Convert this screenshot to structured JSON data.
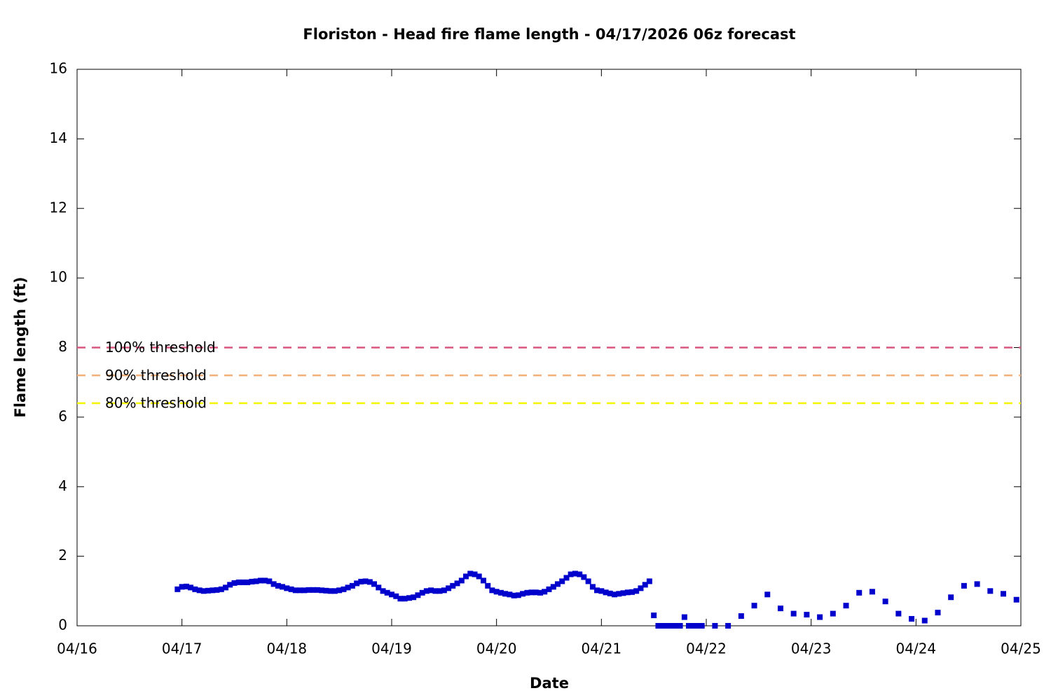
{
  "chart_data": {
    "type": "scatter",
    "title": "Floriston - Head fire flame length - 04/17/2026 06z forecast",
    "x_label": "Date",
    "y_label": "Flame length (ft)",
    "xlim": [
      0,
      9
    ],
    "xticks": [
      {
        "value": 0,
        "label": "04/16"
      },
      {
        "value": 1,
        "label": "04/17"
      },
      {
        "value": 2,
        "label": "04/18"
      },
      {
        "value": 3,
        "label": "04/19"
      },
      {
        "value": 4,
        "label": "04/20"
      },
      {
        "value": 5,
        "label": "04/21"
      },
      {
        "value": 6,
        "label": "04/22"
      },
      {
        "value": 7,
        "label": "04/23"
      },
      {
        "value": 8,
        "label": "04/24"
      },
      {
        "value": 9,
        "label": "04/25"
      }
    ],
    "ylim": [
      0,
      16
    ],
    "yticks": [
      0,
      2,
      4,
      6,
      8,
      10,
      12,
      14,
      16
    ],
    "thresholds": [
      {
        "label": "100% threshold",
        "value": 8,
        "color": "#d9577f"
      },
      {
        "label": "90% threshold",
        "value": 7.2,
        "color": "#f2b07a"
      },
      {
        "label": "80% threshold",
        "value": 6.4,
        "color": "#f5f500"
      }
    ],
    "series": [
      {
        "color": "#0000cc",
        "x": [
          0.958,
          1,
          1.042,
          1.083,
          1.125,
          1.167,
          1.208,
          1.25,
          1.292,
          1.333,
          1.375,
          1.417,
          1.458,
          1.5,
          1.542,
          1.583,
          1.625,
          1.667,
          1.708,
          1.75,
          1.792,
          1.833,
          1.875,
          1.917,
          1.958,
          2,
          2.042,
          2.083,
          2.125,
          2.167,
          2.208,
          2.25,
          2.292,
          2.333,
          2.375,
          2.417,
          2.458,
          2.5,
          2.542,
          2.583,
          2.625,
          2.667,
          2.708,
          2.75,
          2.792,
          2.833,
          2.875,
          2.917,
          2.958,
          3,
          3.042,
          3.083,
          3.125,
          3.167,
          3.208,
          3.25,
          3.292,
          3.333,
          3.375,
          3.417,
          3.458,
          3.5,
          3.542,
          3.583,
          3.625,
          3.667,
          3.708,
          3.75,
          3.792,
          3.833,
          3.875,
          3.917,
          3.958,
          4,
          4.042,
          4.083,
          4.125,
          4.167,
          4.208,
          4.25,
          4.292,
          4.333,
          4.375,
          4.417,
          4.458,
          4.5,
          4.542,
          4.583,
          4.625,
          4.667,
          4.708,
          4.75,
          4.792,
          4.833,
          4.875,
          4.917,
          4.958,
          5,
          5.042,
          5.083,
          5.125,
          5.167,
          5.208,
          5.25,
          5.292,
          5.333,
          5.375,
          5.417,
          5.458,
          5.5,
          5.542,
          5.583,
          5.625,
          5.667,
          5.708,
          5.75,
          5.792,
          5.833,
          5.875,
          5.917,
          5.958,
          6.083,
          6.208,
          6.333,
          6.458,
          6.583,
          6.708,
          6.833,
          6.958,
          7.083,
          7.208,
          7.333,
          7.458,
          7.583,
          7.708,
          7.833,
          7.958,
          8.083,
          8.208,
          8.333,
          8.458,
          8.583,
          8.708,
          8.833,
          8.958
        ],
        "values": [
          1.05,
          1.12,
          1.13,
          1.1,
          1.05,
          1.02,
          1.0,
          1.01,
          1.02,
          1.03,
          1.05,
          1.1,
          1.18,
          1.23,
          1.25,
          1.25,
          1.25,
          1.27,
          1.28,
          1.3,
          1.3,
          1.28,
          1.2,
          1.15,
          1.12,
          1.08,
          1.05,
          1.02,
          1.02,
          1.02,
          1.03,
          1.03,
          1.03,
          1.02,
          1.01,
          1.0,
          1.0,
          1.02,
          1.05,
          1.1,
          1.15,
          1.22,
          1.27,
          1.28,
          1.26,
          1.2,
          1.1,
          1.0,
          0.95,
          0.9,
          0.85,
          0.78,
          0.78,
          0.8,
          0.82,
          0.88,
          0.95,
          1.0,
          1.02,
          1.0,
          1.0,
          1.02,
          1.08,
          1.15,
          1.22,
          1.3,
          1.42,
          1.5,
          1.48,
          1.42,
          1.3,
          1.15,
          1.02,
          0.98,
          0.95,
          0.92,
          0.9,
          0.87,
          0.88,
          0.92,
          0.95,
          0.96,
          0.96,
          0.95,
          0.98,
          1.05,
          1.12,
          1.2,
          1.28,
          1.38,
          1.48,
          1.5,
          1.48,
          1.4,
          1.28,
          1.12,
          1.02,
          1.0,
          0.96,
          0.93,
          0.9,
          0.92,
          0.94,
          0.96,
          0.97,
          1.0,
          1.08,
          1.18,
          1.28,
          0.3,
          0,
          0,
          0,
          0,
          0,
          0,
          0.25,
          0,
          0,
          0,
          0,
          0,
          0,
          0.28,
          0.58,
          0.9,
          0.5,
          0.35,
          0.32,
          0.25,
          0.35,
          0.58,
          0.95,
          0.98,
          0.7,
          0.35,
          0.2,
          0.15,
          0.38,
          0.82,
          1.15,
          1.2,
          1.0,
          0.92,
          0.75
        ]
      }
    ]
  }
}
